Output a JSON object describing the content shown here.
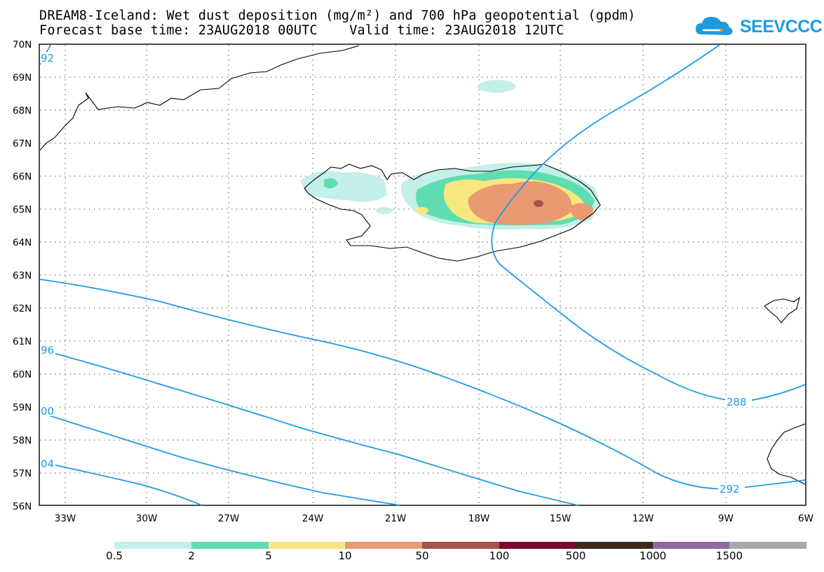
{
  "header": {
    "title_line1": "DREAM8-Iceland: Wet dust deposition (mg/m²) and 700 hPa geopotential (gpdm)",
    "title_line2": "Forecast base time: 23AUG2018 00UTC    Valid time: 23AUG2018 12UTC"
  },
  "logo": {
    "text": "SEEVCCC",
    "icon": "cloud-icon"
  },
  "map": {
    "lat_labels": [
      "70N",
      "69N",
      "68N",
      "67N",
      "66N",
      "65N",
      "64N",
      "63N",
      "62N",
      "61N",
      "60N",
      "59N",
      "58N",
      "57N",
      "56N"
    ],
    "lon_labels": [
      "33W",
      "30W",
      "27W",
      "24W",
      "21W",
      "18W",
      "15W",
      "12W",
      "9W",
      "6W"
    ],
    "contour_labels": [
      "92",
      "96",
      "00",
      "04",
      "288",
      "292"
    ],
    "colors": {
      "contour": "#1f9be6",
      "coastline": "#000000",
      "grid": "#555555"
    }
  },
  "legend": {
    "labels": [
      "0.5",
      "2",
      "5",
      "10",
      "50",
      "100",
      "500",
      "1000",
      "1500"
    ],
    "colors": [
      "#c3f0e8",
      "#5fdcb0",
      "#f6e87e",
      "#ea9a72",
      "#a8524c",
      "#7a0a2c",
      "#3b2a1e",
      "#8e6aa0",
      "#a9a9a9"
    ]
  }
}
